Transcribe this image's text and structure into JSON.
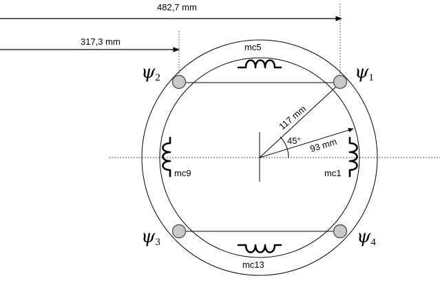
{
  "dimensions": {
    "outer_extent": "482,7 mm",
    "hole_offset": "317,3 mm",
    "hole_radius": "117 mm",
    "coil_radius": "93 mm",
    "angle": "45°"
  },
  "holes": [
    {
      "symbol": "ψ",
      "index": "1"
    },
    {
      "symbol": "ψ",
      "index": "2"
    },
    {
      "symbol": "ψ",
      "index": "3"
    },
    {
      "symbol": "ψ",
      "index": "4"
    }
  ],
  "coils": {
    "top": "mc5",
    "right": "mc1",
    "bottom": "mc13",
    "left": "mc9"
  },
  "colors": {
    "line": "#000000",
    "hole_fill": "#c8c8c8",
    "dashed_axis": "#555555"
  }
}
